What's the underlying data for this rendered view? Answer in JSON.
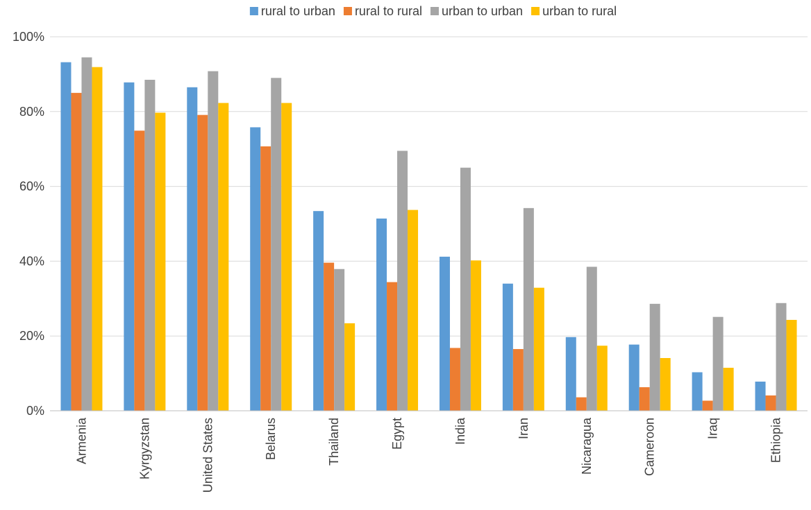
{
  "chart_data": {
    "type": "bar",
    "title": "",
    "xlabel": "",
    "ylabel": "",
    "ylim": [
      0,
      100
    ],
    "yticks": [
      0,
      20,
      40,
      60,
      80,
      100
    ],
    "ytick_labels": [
      "0%",
      "20%",
      "40%",
      "60%",
      "80%",
      "100%"
    ],
    "grid": true,
    "legend_position": "top",
    "categories": [
      "Armenia",
      "Kyrgyzstan",
      "United States",
      "Belarus",
      "Thailand",
      "Egypt",
      "India",
      "Iran",
      "Nicaragua",
      "Cameroon",
      "Iraq",
      "Ethiopia"
    ],
    "series": [
      {
        "name": "rural to urban",
        "color": "#5b9bd5",
        "values": [
          93.2,
          87.8,
          86.5,
          75.8,
          53.4,
          51.4,
          41.2,
          34.0,
          19.7,
          17.7,
          10.3,
          7.8
        ]
      },
      {
        "name": "rural to rural",
        "color": "#ed7d31",
        "values": [
          85.0,
          74.9,
          79.1,
          70.7,
          39.6,
          34.4,
          16.8,
          16.5,
          3.6,
          6.3,
          2.7,
          4.1
        ]
      },
      {
        "name": "urban to urban",
        "color": "#a5a5a5",
        "values": [
          94.5,
          88.5,
          90.8,
          89.0,
          37.9,
          69.5,
          65.0,
          54.2,
          38.5,
          28.6,
          25.1,
          28.8
        ]
      },
      {
        "name": "urban to rural",
        "color": "#ffc000",
        "values": [
          91.9,
          79.7,
          82.3,
          82.3,
          23.4,
          53.7,
          40.2,
          32.9,
          17.4,
          14.1,
          11.5,
          24.3
        ]
      }
    ]
  }
}
